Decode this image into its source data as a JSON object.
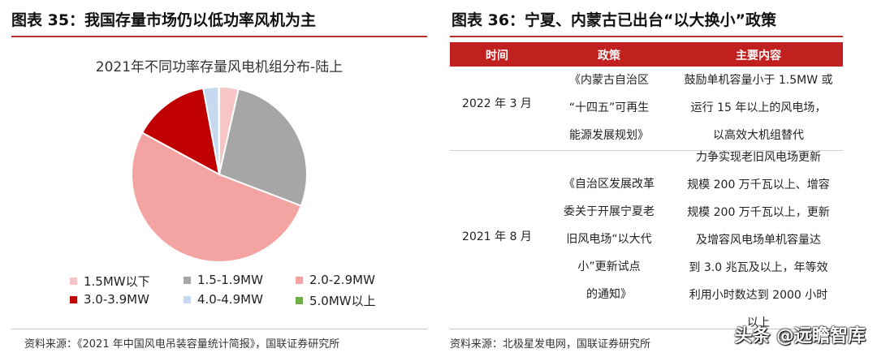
{
  "left": {
    "figure_title": "图表 35：我国存量市场仍以低功率风机为主",
    "source": "资料来源：《2021 年中国风电吊装容量统计简报》，国联证券研究所"
  },
  "chart_data": {
    "type": "pie",
    "title": "2021年不同功率存量风电机组分布-陆上",
    "legend_position": "bottom",
    "slices": [
      {
        "label": "1.5MW以下",
        "value": 3.5,
        "color": "#f7c5c5"
      },
      {
        "label": "1.5-1.9MW",
        "value": 27.0,
        "color": "#a6a6a6"
      },
      {
        "label": "2.0-2.9MW",
        "value": 51.5,
        "color": "#f4a3a3"
      },
      {
        "label": "3.0-3.9MW",
        "value": 14.0,
        "color": "#c00000"
      },
      {
        "label": "4.0-4.9MW",
        "value": 2.8,
        "color": "#c6d9f1"
      },
      {
        "label": "5.0MW以上",
        "value": 0.1,
        "color": "#70ad47"
      }
    ]
  },
  "right": {
    "figure_title": "图表 36：宁夏、内蒙古已出台“以大换小”政策",
    "headers": [
      "时间",
      "政策",
      "主要内容"
    ],
    "rows": [
      {
        "time": "2022 年 3 月",
        "policy_lines": [
          "《内蒙古自治区",
          "“十四五”可再生",
          "能源发展规划》"
        ],
        "content_lines": [
          "鼓励单机容量小于 1.5MW 或",
          "运行 15 年以上的风电场，",
          "以高效大机组替代"
        ]
      },
      {
        "time": "2021 年 8 月",
        "policy_lines": [
          "《自治区发展改革",
          "委关于开展宁夏老",
          "旧风电场“以大代",
          "小”更新试点",
          "的通知》"
        ],
        "content_lines": [
          "力争实现老旧风电场更新",
          "规模 200 万千瓦以上、增容",
          "规模 200 万千瓦以上，更新",
          "及增容风电场单机容量达",
          "到 3.0 兆瓦及以上，年等效",
          "利用小时数达到 2000 小时",
          "以上"
        ]
      }
    ],
    "source": "资料来源：北极星发电网，国联证券研究所"
  },
  "watermark": "头条 @远瞻智库"
}
